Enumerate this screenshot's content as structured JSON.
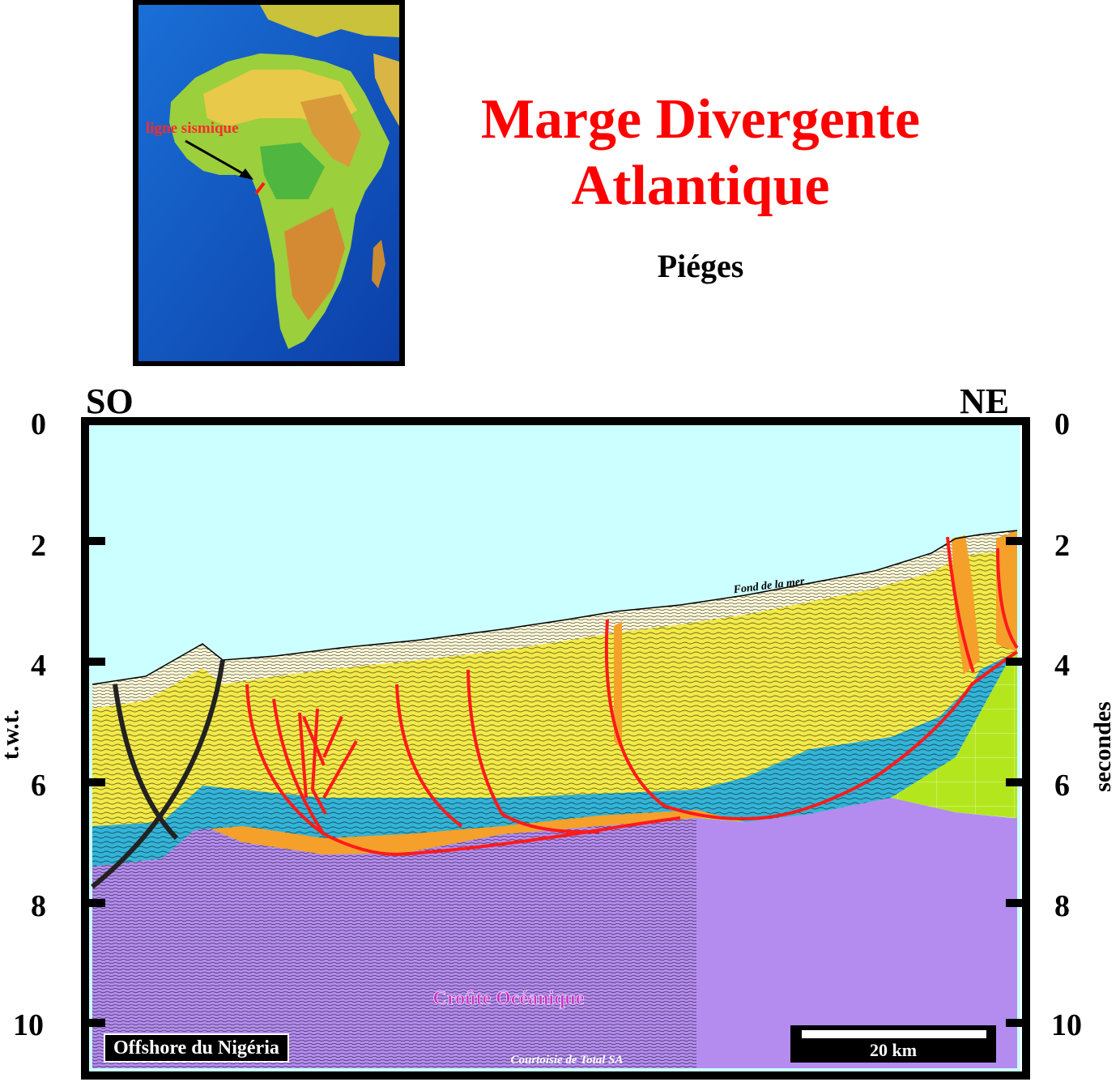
{
  "title": {
    "line1": "Marge Divergente",
    "line2": "Atlantique"
  },
  "subtitle": "Piéges",
  "map": {
    "label": "ligne sismique"
  },
  "section": {
    "left_direction": "SO",
    "right_direction": "NE",
    "left_axis_title": "t.w.t.",
    "right_axis_title": "secondes",
    "ticks_left": [
      "0",
      "2",
      "4",
      "6",
      "8",
      "10"
    ],
    "ticks_right": [
      "0",
      "2",
      "4",
      "6",
      "8",
      "10"
    ],
    "seafloor_label": "Fond de la mer",
    "crust_label": "Croûte Océanique",
    "location_label": "Offshore du Nigéria",
    "scale_label": "20 km",
    "credit": "Courtoisie de Total SA"
  },
  "colors": {
    "title": "#ff0000",
    "water": "#ccffff",
    "sediment_yellow": "#f4ea48",
    "salt_blue": "#33b4d8",
    "orange_layer": "#f5a02a",
    "green_layer": "#b4e61e",
    "oceanic_crust": "#b48cf0",
    "faults": "#ff1a1a"
  }
}
